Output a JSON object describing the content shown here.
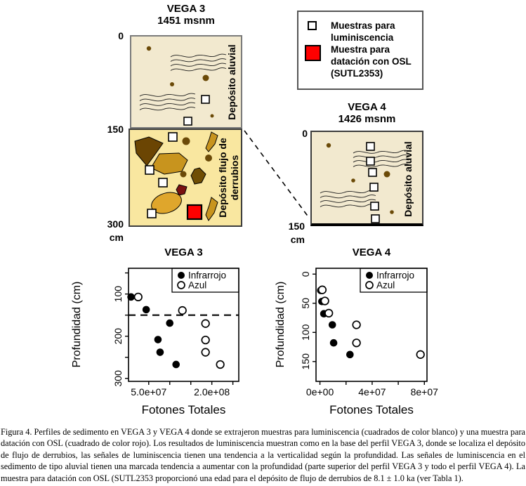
{
  "figure": {
    "legend": {
      "items": [
        {
          "marker": "white-square",
          "label": "Muestras para luminiscencia"
        },
        {
          "marker": "red-square",
          "label": "Muestra para datación con OSL (SUTL2353)"
        }
      ]
    },
    "profiles": {
      "vega3": {
        "title": "VEGA 3",
        "elevation": "1451 msnm",
        "scale_labels": [
          "0",
          "150",
          "300"
        ],
        "scale_unit": "cm",
        "upper_unit": "Depósito aluvial",
        "lower_unit": "Depósito flujo de derrubios"
      },
      "vega4": {
        "title": "VEGA 4",
        "elevation": "1426 msnm",
        "scale_labels": [
          "0",
          "150"
        ],
        "scale_unit": "cm",
        "unit": "Depósito aluvial"
      }
    },
    "caption": "Figura 4. Perfiles de sedimento en VEGA 3 y VEGA 4 donde se extrajeron muestras para luminiscencia (cuadrados de color blanco) y una muestra para datación con OSL (cuadrado de color rojo). Los resultados de luminiscencia muestran como en la base del perfil VEGA 3, donde se localiza el depósito de flujo de derrubios, las señales de luminiscencia tienen una tendencia a la verticalidad según la profundidad. Las señales de luminiscencia en el sedimento de tipo aluvial tienen una marcada tendencia a aumentar con la profundidad (parte superior del perfil VEGA 3 y todo el perfil VEGA 4). La muestra para datación con OSL (SUTL2353 proporcionó una edad para el depósito de flujo de derrubios de 8.1 ± 1.0 ka (ver Tabla 1)."
  },
  "colors": {
    "profile-aluvial-bg": "#f2e9cf",
    "profile-debris-bg": "#f9e7a0",
    "clast-tan": "#c8941e",
    "clast-tan-light": "#dfa62c",
    "clast-dark-brown": "#6b4503",
    "clast-olive": "#704e04",
    "clast-maroon": "#7a1111",
    "dot-brown": "#6b4a08",
    "osl-red": "#ff0000"
  },
  "chart_data": [
    {
      "type": "scatter",
      "title": "VEGA 3",
      "xlabel": "Fotones Totales",
      "ylabel": "Profundidad (cm)",
      "xlim": [
        2000000,
        264000000
      ],
      "ylim": [
        39,
        307
      ],
      "y_inverted": true,
      "grid": false,
      "legend_position": "top-right",
      "x_ticks": [
        {
          "value": 50000000,
          "label": "5.0e+07"
        },
        {
          "value": 100000000
        },
        {
          "value": 150000000
        },
        {
          "value": 200000000,
          "label": "2.0e+08"
        },
        {
          "value": 250000000
        }
      ],
      "y_ticks": [
        {
          "value": 50
        },
        {
          "value": 100,
          "label": "100"
        },
        {
          "value": 150
        },
        {
          "value": 200,
          "label": "200"
        },
        {
          "value": 250
        },
        {
          "value": 300,
          "label": "300"
        }
      ],
      "dashed_line_depth": 150,
      "series": [
        {
          "name": "Infrarrojo",
          "marker": "filled",
          "points": [
            [
              8000000,
              107
            ],
            [
              44000000,
              137
            ],
            [
              100000000,
              169
            ],
            [
              72000000,
              208
            ],
            [
              77000000,
              238
            ],
            [
              115000000,
              267
            ]
          ]
        },
        {
          "name": "Azul",
          "marker": "open",
          "points": [
            [
              25000000,
              107
            ],
            [
              130000000,
              139
            ],
            [
              185000000,
              170
            ],
            [
              185000000,
              209
            ],
            [
              185000000,
              238
            ],
            [
              220000000,
              267
            ]
          ]
        }
      ]
    },
    {
      "type": "scatter",
      "title": "VEGA 4",
      "xlabel": "Fotones Totales",
      "ylabel": "Profundidad (cm)",
      "xlim": [
        -3000000,
        82000000
      ],
      "ylim": [
        -10,
        184
      ],
      "y_inverted": true,
      "grid": false,
      "legend_position": "top-right",
      "x_ticks": [
        {
          "value": 0,
          "label": "0e+00"
        },
        {
          "value": 20000000
        },
        {
          "value": 40000000,
          "label": "4e+07"
        },
        {
          "value": 60000000
        },
        {
          "value": 80000000,
          "label": "8e+07"
        }
      ],
      "y_ticks": [
        {
          "value": 0,
          "label": "0"
        },
        {
          "value": 50,
          "label": "50"
        },
        {
          "value": 100,
          "label": "100"
        },
        {
          "value": 150,
          "label": "150"
        }
      ],
      "dashed_line_depth": null,
      "series": [
        {
          "name": "Infrarrojo",
          "marker": "filled",
          "points": [
            [
              600000,
              28
            ],
            [
              1500000,
              47
            ],
            [
              3000000,
              68
            ],
            [
              9500000,
              87
            ],
            [
              10500000,
              118
            ],
            [
              23000000,
              138
            ]
          ]
        },
        {
          "name": "Azul",
          "marker": "open",
          "points": [
            [
              1800000,
              27
            ],
            [
              3800000,
              46
            ],
            [
              6800000,
              67
            ],
            [
              28000000,
              87
            ],
            [
              28000000,
              118
            ],
            [
              77000000,
              138
            ]
          ]
        }
      ]
    }
  ]
}
